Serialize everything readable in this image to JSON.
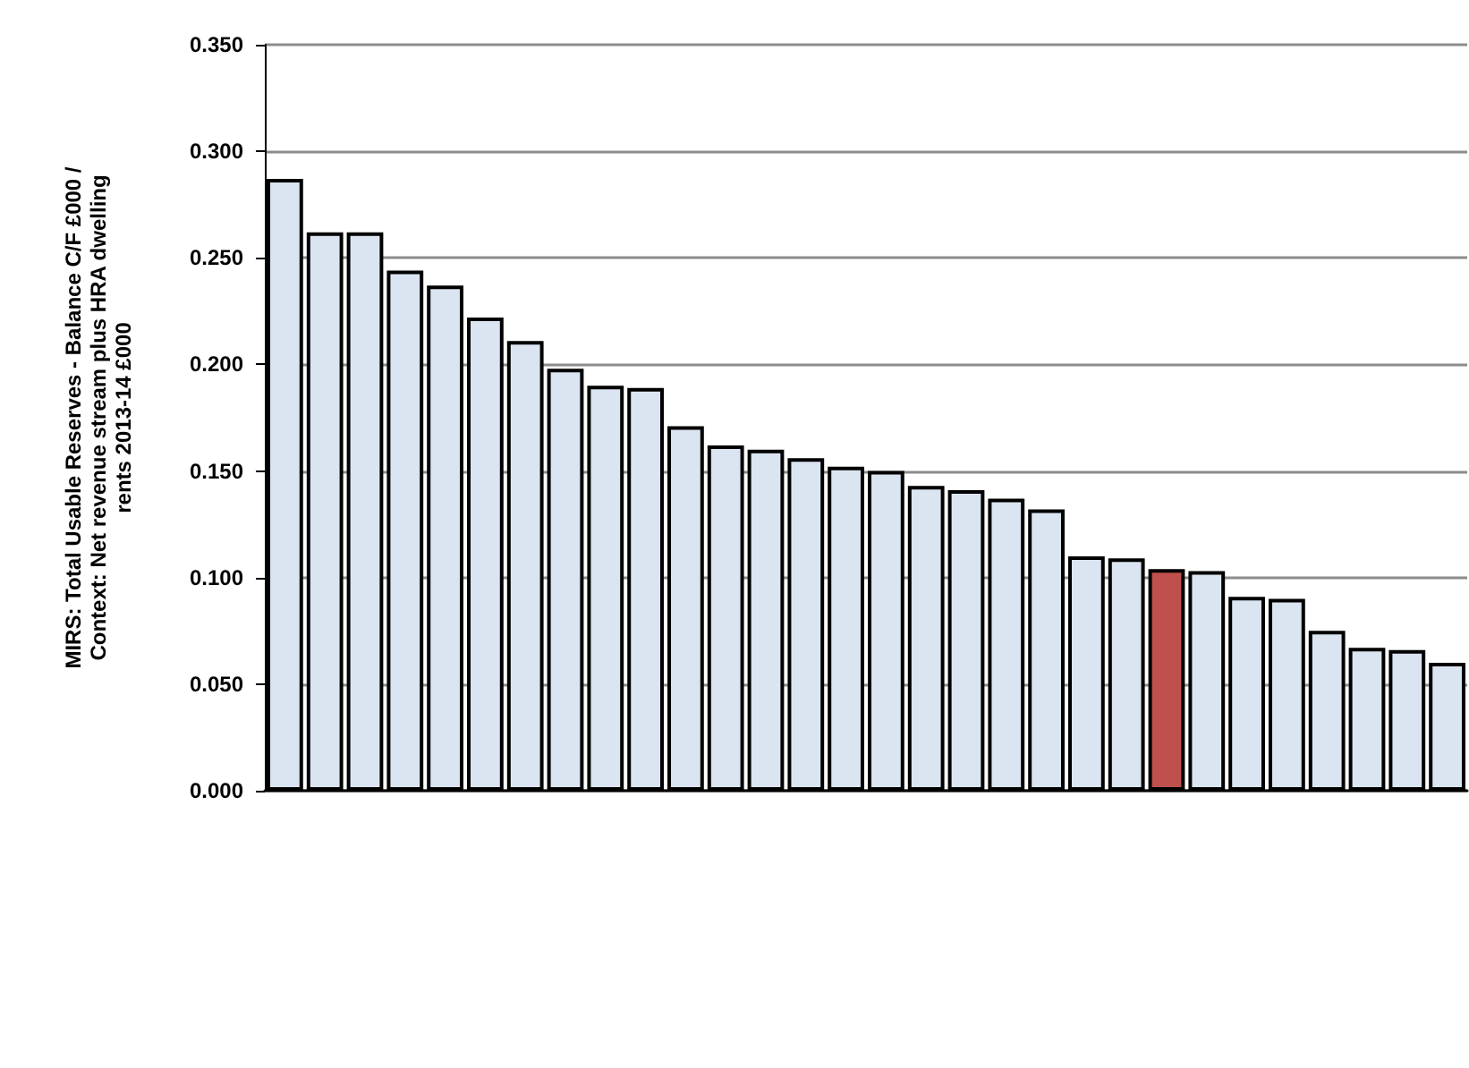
{
  "chart_data": {
    "type": "bar",
    "ylabel": "MIRS: Total Usable Reserves - Balance C/F £000 / Context: Net revenue stream plus HRA dwelling rents 2013-14 £000",
    "categories": [
      null,
      null,
      null,
      null,
      null,
      null,
      null,
      null,
      null,
      null,
      null,
      null,
      null,
      null,
      null,
      null,
      null,
      null,
      null,
      null,
      null,
      null,
      null,
      null,
      null,
      null,
      null,
      null,
      null,
      null
    ],
    "values": [
      0.287,
      0.262,
      0.262,
      0.244,
      0.237,
      0.222,
      0.211,
      0.198,
      0.19,
      0.189,
      0.171,
      0.162,
      0.16,
      0.156,
      0.152,
      0.15,
      0.143,
      0.141,
      0.137,
      0.132,
      0.11,
      0.109,
      0.104,
      0.103,
      0.091,
      0.09,
      0.075,
      0.067,
      0.066,
      0.06
    ],
    "colors": [
      "#dbe5f1",
      "#dbe5f1",
      "#dbe5f1",
      "#dbe5f1",
      "#dbe5f1",
      "#dbe5f1",
      "#dbe5f1",
      "#dbe5f1",
      "#dbe5f1",
      "#dbe5f1",
      "#dbe5f1",
      "#dbe5f1",
      "#dbe5f1",
      "#dbe5f1",
      "#dbe5f1",
      "#dbe5f1",
      "#dbe5f1",
      "#dbe5f1",
      "#dbe5f1",
      "#dbe5f1",
      "#dbe5f1",
      "#dbe5f1",
      "#c0504d",
      "#dbe5f1",
      "#dbe5f1",
      "#dbe5f1",
      "#dbe5f1",
      "#dbe5f1",
      "#dbe5f1",
      "#dbe5f1"
    ],
    "ylim": [
      0,
      0.35
    ],
    "yticks": [
      {
        "value": 0,
        "label": "0.000"
      },
      {
        "value": 0.05,
        "label": "0.050"
      },
      {
        "value": 0.1,
        "label": "0.100"
      },
      {
        "value": 0.15,
        "label": "0.150"
      },
      {
        "value": 0.2,
        "label": "0.200"
      },
      {
        "value": 0.25,
        "label": "0.250"
      },
      {
        "value": 0.3,
        "label": "0.300"
      },
      {
        "value": 0.35,
        "label": "0.350"
      }
    ],
    "grid": "y"
  }
}
